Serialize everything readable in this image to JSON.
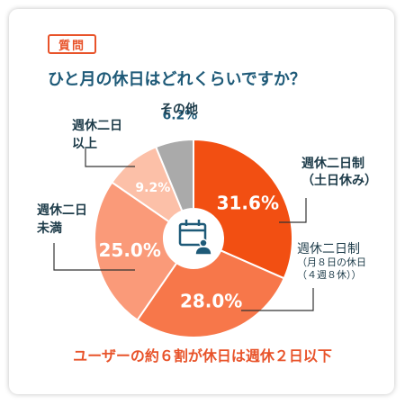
{
  "header": {
    "badge": "質問",
    "question": "ひと月の休日はどれくらいですか？"
  },
  "summary": "ユーザーの約６割が休日は週休２日以下",
  "colors": {
    "accent": "#e8532a",
    "navy": "#1e5a78",
    "gray": "#aaaaaa"
  },
  "icon": "calendar-person-icon",
  "chart_data": {
    "type": "pie",
    "donut": true,
    "categories": [
      "週休二日制（土日休み）",
      "週休二日制（月８日の休日（４週８休））",
      "週休二日未満",
      "週休二日以上",
      "その他"
    ],
    "values": [
      31.6,
      28.0,
      25.0,
      9.2,
      6.2
    ],
    "value_labels": [
      "31.6%",
      "28.0%",
      "25.0%",
      "9.2%",
      "6.2%"
    ],
    "colors": [
      "#f24f12",
      "#f7774a",
      "#fa9a79",
      "#fcc0a8",
      "#aaaaaa"
    ],
    "label_colors": [
      "#ffffff",
      "#ffffff",
      "#ffffff",
      "#ffffff",
      "#1e5a78"
    ],
    "callouts": [
      {
        "lines": [
          "週休二日制",
          "（土日休み）"
        ],
        "small": false
      },
      {
        "lines": [
          "週休二日制",
          "（月８日の休日",
          "（４週８休））"
        ],
        "small": true
      },
      {
        "lines": [
          "週休二日",
          "未満"
        ],
        "small": false
      },
      {
        "lines": [
          "週休二日",
          "以上"
        ],
        "small": false
      },
      {
        "lines": [
          "その他"
        ],
        "small": false
      }
    ]
  }
}
